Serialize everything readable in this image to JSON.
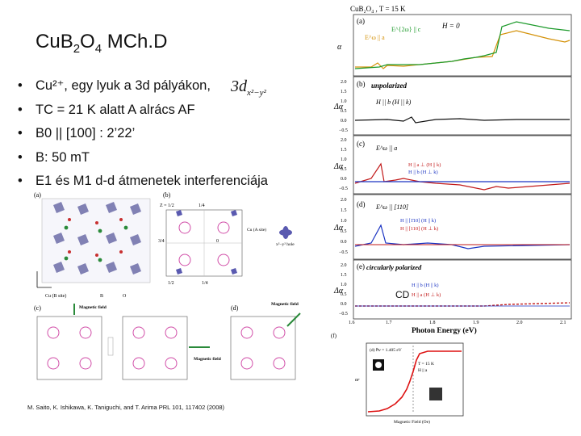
{
  "slide": {
    "title_main": "Cu",
    "title_b": "B",
    "title_sub1": "2",
    "title_o": "O",
    "title_sub2": "4",
    "title_rest": " MCh.D",
    "bullets": [
      "Cu²⁺, egy lyuk a 3d pályákon,",
      "TC = 21 K alatt A alrács AF",
      "B0 || [100] : 2’22’",
      "B: 50 mT",
      "E1 és M1 d-d átmenetek interferenciája"
    ],
    "orbital": {
      "main": "3d",
      "sub": "x²−y²"
    },
    "citation": "M. Saito, K. Ishikawa, K. Taniguchi, and T. Arima PRL 101, 117402 (2008)",
    "cd_label": "CD"
  },
  "figure_right": {
    "header": "CuB₂O₄ , T = 15 K",
    "panels": [
      {
        "tag": "(a)",
        "ylabel": "α",
        "legend": [
          "E^ω || a",
          "E^{2ω} || c",
          "H = 0"
        ]
      },
      {
        "tag": "(b)",
        "ylabel": "Δα",
        "title": "unpolarized",
        "note": "H || b  (H || k)"
      },
      {
        "tag": "(c)",
        "ylabel": "Δα",
        "note": "E^ω || a",
        "sub": [
          "H || a ⊥ (H || k)",
          "H || b (H ⊥ k)"
        ]
      },
      {
        "tag": "(d)",
        "ylabel": "Δα",
        "note": "E^ω || [110]",
        "sub": [
          "H || [1̄10] (H || k)",
          "H || [110] (H ⊥ k)"
        ]
      },
      {
        "tag": "(e)",
        "ylabel": "Δα",
        "title": "circularly polarized",
        "sub": [
          "H || b (H || k)",
          "H || a (H ⊥ k)"
        ]
      }
    ],
    "yticks": [
      "2.0",
      "1.5",
      "1.0",
      "0.5",
      "0.0",
      "−0.5"
    ],
    "xticks": [
      "1.6",
      "1.7",
      "1.8",
      "1.9",
      "2.0",
      "2.1"
    ],
    "xlabel": "Photon Energy  (eV)",
    "inset": {
      "tag": "(f)",
      "note": "(d) ℏν = 1.405 eV",
      "t": "T = 15 K",
      "h": "H || a",
      "xlabel": "Magnetic Field (Oe)",
      "ylabel": "αr"
    }
  },
  "figure_left": {
    "tags": [
      "(a)",
      "(b)",
      "(c)",
      "(d)"
    ],
    "labels": [
      "Z = 1/2",
      "1/4",
      "3/4",
      "0",
      "1/2",
      "1/4",
      "Cu (A site)",
      "Cu (B site)",
      "B",
      "O",
      "x²−y² hole"
    ],
    "magnetic_field": "Magnetic field"
  }
}
